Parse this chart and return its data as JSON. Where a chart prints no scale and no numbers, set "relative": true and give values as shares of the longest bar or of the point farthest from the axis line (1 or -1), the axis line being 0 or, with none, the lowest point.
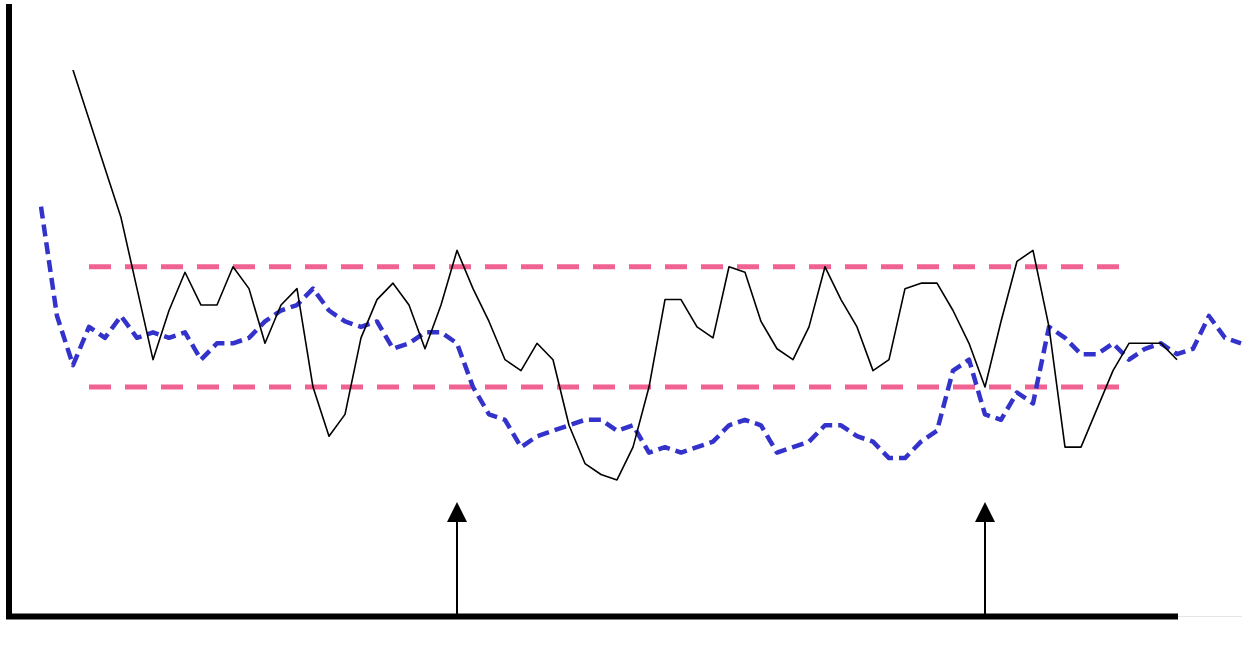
{
  "chart_data": {
    "type": "line",
    "relative": true,
    "categories": [
      null,
      null,
      null,
      null,
      null,
      null,
      null,
      null,
      null,
      null,
      null,
      null,
      null,
      null,
      null,
      null,
      null,
      null,
      null,
      null,
      null,
      null,
      null,
      null,
      null,
      null,
      null,
      null,
      null,
      null,
      null,
      null,
      null,
      null,
      null,
      null,
      null,
      null,
      null,
      null,
      null,
      null,
      null,
      null,
      null,
      null,
      null,
      null,
      null,
      null,
      null,
      null,
      null,
      null,
      null,
      null,
      null,
      null,
      null,
      null,
      null,
      null,
      null,
      null,
      null,
      null,
      null,
      null,
      null,
      null,
      null,
      null,
      null,
      null,
      null,
      null
    ],
    "series": [
      {
        "color": "#000000",
        "line_style": "solid",
        "values": [
          null,
          null,
          1.0,
          0.91,
          0.82,
          0.73,
          0.6,
          0.47,
          0.56,
          0.63,
          0.57,
          0.57,
          0.64,
          0.6,
          0.5,
          0.57,
          0.6,
          0.42,
          0.33,
          0.37,
          0.51,
          0.58,
          0.61,
          0.57,
          0.49,
          0.57,
          0.67,
          0.6,
          0.54,
          0.47,
          0.45,
          0.5,
          0.47,
          0.35,
          0.28,
          0.26,
          0.25,
          0.31,
          0.42,
          0.58,
          0.58,
          0.53,
          0.51,
          0.64,
          0.63,
          0.54,
          0.49,
          0.47,
          0.53,
          0.64,
          0.58,
          0.53,
          0.45,
          0.47,
          0.6,
          0.61,
          0.61,
          0.56,
          0.5,
          0.42,
          0.54,
          0.65,
          0.67,
          0.53,
          0.31,
          0.31,
          0.38,
          0.45,
          0.5,
          0.5,
          0.5,
          0.47,
          null,
          null,
          null,
          null
        ]
      },
      {
        "color": "#3333cc",
        "line_style": "dashed",
        "values": [
          0.75,
          0.55,
          0.46,
          0.53,
          0.51,
          0.55,
          0.51,
          0.52,
          0.51,
          0.52,
          0.47,
          0.5,
          0.5,
          0.51,
          0.54,
          0.56,
          0.57,
          0.6,
          0.56,
          0.54,
          0.53,
          0.54,
          0.49,
          0.5,
          0.52,
          0.52,
          0.5,
          0.42,
          0.37,
          0.36,
          0.31,
          0.33,
          0.34,
          0.35,
          0.36,
          0.36,
          0.34,
          0.35,
          0.3,
          0.31,
          0.3,
          0.31,
          0.32,
          0.35,
          0.36,
          0.35,
          0.3,
          0.31,
          0.32,
          0.35,
          0.35,
          0.33,
          0.32,
          0.29,
          0.29,
          0.32,
          0.34,
          0.45,
          0.47,
          0.37,
          0.36,
          0.41,
          0.39,
          0.53,
          0.51,
          0.48,
          0.48,
          0.5,
          0.47,
          0.49,
          0.5,
          0.48,
          0.49,
          0.55,
          0.51,
          0.5
        ]
      }
    ],
    "ref_lines": [
      {
        "axis": "y",
        "value": 0.64,
        "color": "#f06292",
        "line_style": "dashed"
      },
      {
        "axis": "y",
        "value": 0.42,
        "color": "#f06292",
        "line_style": "dashed"
      }
    ],
    "marker": "none",
    "legend": false
  }
}
